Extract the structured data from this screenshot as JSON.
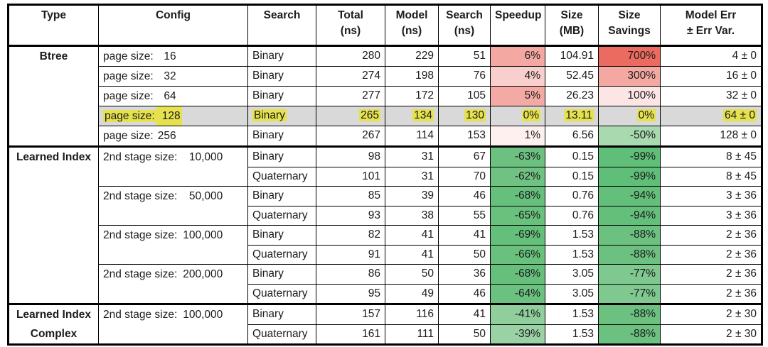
{
  "colors": {
    "row_highlight_bg": "#d9d9d9",
    "text_highlight_yellow": "#e6e14e",
    "border": "#000000",
    "speedup_red_strong": "#ec6b61",
    "speedup_green_strong": "#5fbe78"
  },
  "table": {
    "header": [
      {
        "l1": "Type"
      },
      {
        "l1": "Config"
      },
      {
        "l1": "Search"
      },
      {
        "l1": "Total",
        "l2": "(ns)"
      },
      {
        "l1": "Model",
        "l2": "(ns)"
      },
      {
        "l1": "Search",
        "l2": "(ns)"
      },
      {
        "l1": "Speedup"
      },
      {
        "l1": "Size",
        "l2": "(MB)"
      },
      {
        "l1": "Size",
        "l2": "Savings"
      },
      {
        "l1": "Model Err",
        "l2": "± Err Var."
      }
    ],
    "sections": [
      {
        "type_lines": [
          "Btree"
        ],
        "groups": [
          {
            "config_label": "page size:",
            "config_value": "16",
            "rows": [
              {
                "search": "Binary",
                "total": "280",
                "model": "229",
                "search_ns": "51",
                "speedup": "6%",
                "speedup_bg": "#f4a8a2",
                "size": "104.91",
                "savings": "700%",
                "savings_bg": "#ec6b61",
                "err": "4 ± 0"
              }
            ]
          },
          {
            "config_label": "page size:",
            "config_value": "32",
            "rows": [
              {
                "search": "Binary",
                "total": "274",
                "model": "198",
                "search_ns": "76",
                "speedup": "4%",
                "speedup_bg": "#f8cfcc",
                "size": "52.45",
                "savings": "300%",
                "savings_bg": "#f4a8a2",
                "err": "16 ± 0"
              }
            ]
          },
          {
            "config_label": "page size:",
            "config_value": "64",
            "rows": [
              {
                "search": "Binary",
                "total": "277",
                "model": "172",
                "search_ns": "105",
                "speedup": "5%",
                "speedup_bg": "#f4aaa4",
                "size": "26.23",
                "savings": "100%",
                "savings_bg": "#fce5e4",
                "err": "32 ± 0"
              }
            ]
          },
          {
            "config_label": "page size:",
            "config_value": "128",
            "rows": [
              {
                "search": "Binary",
                "total": "265",
                "model": "134",
                "search_ns": "130",
                "speedup": "0%",
                "size": "13.11",
                "savings": "0%",
                "err": "64 ± 0",
                "highlight": true
              }
            ]
          },
          {
            "config_label": "page size:",
            "config_value": "256",
            "rows": [
              {
                "search": "Binary",
                "total": "267",
                "model": "114",
                "search_ns": "153",
                "speedup": "1%",
                "speedup_bg": "#fdf0ef",
                "size": "6.56",
                "savings": "-50%",
                "savings_bg": "#a9d9af",
                "err": "128 ± 0"
              }
            ]
          }
        ]
      },
      {
        "type_lines": [
          "Learned Index"
        ],
        "groups": [
          {
            "config_label": "2nd stage size:",
            "config_value": "10,000",
            "rows": [
              {
                "search": "Binary",
                "total": "98",
                "model": "31",
                "search_ns": "67",
                "speedup": "-63%",
                "speedup_bg": "#6cc180",
                "size": "0.15",
                "savings": "-99%",
                "savings_bg": "#5fbe78",
                "err": "8 ± 45"
              },
              {
                "search": "Quaternary",
                "total": "101",
                "model": "31",
                "search_ns": "70",
                "speedup": "-62%",
                "speedup_bg": "#6fc282",
                "size": "0.15",
                "savings": "-99%",
                "savings_bg": "#5fbe78",
                "err": "8 ± 45"
              }
            ]
          },
          {
            "config_label": "2nd stage size:",
            "config_value": "50,000",
            "rows": [
              {
                "search": "Binary",
                "total": "85",
                "model": "39",
                "search_ns": "46",
                "speedup": "-68%",
                "speedup_bg": "#66c07c",
                "size": "0.76",
                "savings": "-94%",
                "savings_bg": "#64bf7b",
                "err": "3 ± 36"
              },
              {
                "search": "Quaternary",
                "total": "93",
                "model": "38",
                "search_ns": "55",
                "speedup": "-65%",
                "speedup_bg": "#6ac17e",
                "size": "0.76",
                "savings": "-94%",
                "savings_bg": "#64bf7b",
                "err": "3 ± 36"
              }
            ]
          },
          {
            "config_label": "2nd stage size:",
            "config_value": "100,000",
            "rows": [
              {
                "search": "Binary",
                "total": "82",
                "model": "41",
                "search_ns": "41",
                "speedup": "-69%",
                "speedup_bg": "#64bf7b",
                "size": "1.53",
                "savings": "-88%",
                "savings_bg": "#6cc180",
                "err": "2 ± 36"
              },
              {
                "search": "Quaternary",
                "total": "91",
                "model": "41",
                "search_ns": "50",
                "speedup": "-66%",
                "speedup_bg": "#69c17d",
                "size": "1.53",
                "savings": "-88%",
                "savings_bg": "#6cc180",
                "err": "2 ± 36"
              }
            ]
          },
          {
            "config_label": "2nd stage size:",
            "config_value": "200,000",
            "rows": [
              {
                "search": "Binary",
                "total": "86",
                "model": "50",
                "search_ns": "36",
                "speedup": "-68%",
                "speedup_bg": "#66c07c",
                "size": "3.05",
                "savings": "-77%",
                "savings_bg": "#7fc88f",
                "err": "2 ± 36"
              },
              {
                "search": "Quaternary",
                "total": "95",
                "model": "49",
                "search_ns": "46",
                "speedup": "-64%",
                "speedup_bg": "#6bc17f",
                "size": "3.05",
                "savings": "-77%",
                "savings_bg": "#7fc88f",
                "err": "2 ± 36"
              }
            ]
          }
        ]
      },
      {
        "type_lines": [
          "Learned Index",
          "Complex"
        ],
        "groups": [
          {
            "config_label": "2nd stage size:",
            "config_value": "100,000",
            "rows": [
              {
                "search": "Binary",
                "total": "157",
                "model": "116",
                "search_ns": "41",
                "speedup": "-41%",
                "speedup_bg": "#90ce9c",
                "size": "1.53",
                "savings": "-88%",
                "savings_bg": "#6cc180",
                "err": "2 ± 30"
              },
              {
                "search": "Quaternary",
                "total": "161",
                "model": "111",
                "search_ns": "50",
                "speedup": "-39%",
                "speedup_bg": "#9bd2a5",
                "size": "1.53",
                "savings": "-88%",
                "savings_bg": "#6cc180",
                "err": "2 ± 30"
              }
            ]
          }
        ]
      }
    ]
  }
}
